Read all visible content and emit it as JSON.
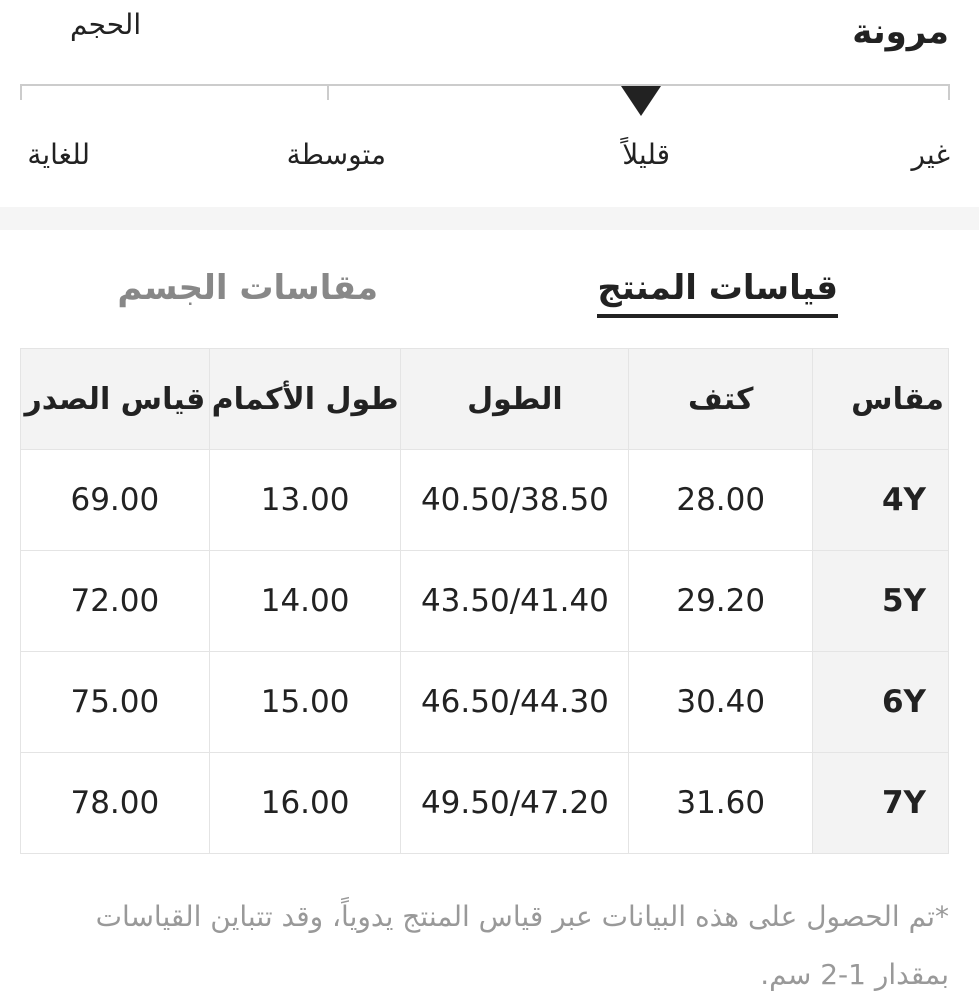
{
  "stretch": {
    "title": "مرونة",
    "size_label": "الحجم",
    "levels": [
      "غير",
      "قليلاً",
      "متوسطة",
      "للغاية"
    ],
    "selected": "قليلاً"
  },
  "tabs": [
    {
      "label": "قياسات المنتج",
      "active": true
    },
    {
      "label": "مقاسات الجسم",
      "active": false
    }
  ],
  "table": {
    "headers": [
      "مقاس",
      "كتف",
      "الطول",
      "طول الأكمام",
      "قياس الصدر"
    ],
    "rows": [
      [
        "4Y",
        "28.00",
        "40.50/38.50",
        "13.00",
        "69.00"
      ],
      [
        "5Y",
        "29.20",
        "43.50/41.40",
        "14.00",
        "72.00"
      ],
      [
        "6Y",
        "30.40",
        "46.50/44.30",
        "15.00",
        "75.00"
      ],
      [
        "7Y",
        "31.60",
        "49.50/47.20",
        "16.00",
        "78.00"
      ]
    ]
  },
  "note": "*تم الحصول على هذه البيانات عبر قياس المنتج يدوياً، وقد تتباين القياسات بمقدار 1-2 سم."
}
